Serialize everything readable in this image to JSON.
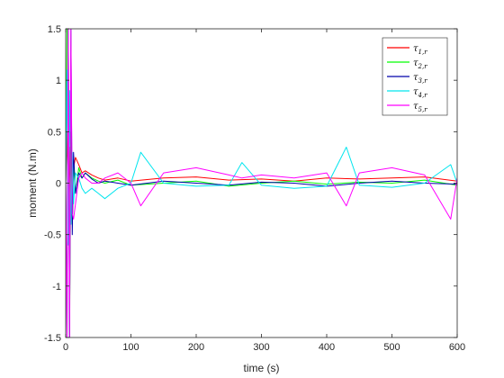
{
  "chart_data": {
    "type": "line",
    "xlabel": "time (s)",
    "ylabel": "moment (N.m)",
    "xlim": [
      0,
      600
    ],
    "ylim": [
      -1.5,
      1.5
    ],
    "x_ticks": [
      "0",
      "100",
      "200",
      "300",
      "400",
      "500",
      "600"
    ],
    "y_ticks": [
      "-1.5",
      "-1",
      "-0.5",
      "0",
      "0.5",
      "1",
      "1.5"
    ],
    "grid": false,
    "legend_position": "top-right",
    "series": [
      {
        "name": "τ1,r",
        "symbol": "τ",
        "subscript": "1,r",
        "color": "#ff0000",
        "x": [
          0,
          2,
          4,
          6,
          8,
          10,
          12,
          15,
          20,
          25,
          30,
          40,
          50,
          60,
          80,
          100,
          150,
          200,
          250,
          300,
          350,
          400,
          450,
          500,
          550,
          600
        ],
        "y": [
          0,
          0.5,
          -0.6,
          0.35,
          -0.3,
          0.2,
          0.15,
          0.25,
          0.18,
          0.1,
          0.12,
          0.08,
          0.05,
          0.03,
          0.05,
          0.02,
          0.05,
          0.06,
          0.03,
          0.04,
          0.02,
          0.05,
          0.04,
          0.05,
          0.06,
          0.02
        ]
      },
      {
        "name": "τ2,r",
        "symbol": "τ",
        "subscript": "2,r",
        "color": "#00ff00",
        "x": [
          0,
          2,
          4,
          6,
          8,
          10,
          12,
          15,
          20,
          25,
          30,
          40,
          50,
          60,
          80,
          100,
          150,
          200,
          250,
          300,
          350,
          400,
          450,
          500,
          550,
          600
        ],
        "y": [
          0,
          1.5,
          1.5,
          -1.5,
          0.5,
          -0.4,
          0.2,
          -0.1,
          0.15,
          0.05,
          0.1,
          0.05,
          0.02,
          0.0,
          0.03,
          -0.02,
          0.0,
          0.02,
          -0.03,
          0.0,
          0.02,
          -0.01,
          0.01,
          0.0,
          0.03,
          -0.02
        ]
      },
      {
        "name": "τ3,r",
        "symbol": "τ",
        "subscript": "3,r",
        "color": "#0000aa",
        "x": [
          0,
          2,
          4,
          6,
          8,
          10,
          12,
          15,
          20,
          25,
          30,
          40,
          50,
          60,
          80,
          100,
          150,
          200,
          250,
          300,
          350,
          400,
          450,
          500,
          550,
          600
        ],
        "y": [
          0,
          -1.5,
          1.5,
          -1.5,
          1.5,
          -0.5,
          0.3,
          -0.1,
          0.1,
          0.05,
          0.1,
          0.04,
          0.0,
          0.02,
          0.0,
          -0.02,
          0.02,
          0.0,
          -0.02,
          0.01,
          0.0,
          -0.03,
          0.0,
          0.02,
          0.0,
          -0.01
        ]
      },
      {
        "name": "τ4,r",
        "symbol": "τ",
        "subscript": "4,r",
        "color": "#00e5ee",
        "x": [
          0,
          2,
          4,
          6,
          8,
          10,
          12,
          15,
          20,
          25,
          30,
          40,
          50,
          60,
          80,
          100,
          115,
          150,
          200,
          250,
          270,
          300,
          350,
          400,
          430,
          450,
          500,
          550,
          590,
          600
        ],
        "y": [
          0,
          1.1,
          -0.6,
          0.9,
          -0.4,
          0.3,
          -0.2,
          0.1,
          0.05,
          -0.05,
          -0.1,
          -0.05,
          -0.1,
          -0.15,
          -0.05,
          0.0,
          0.3,
          0.0,
          -0.03,
          -0.02,
          0.2,
          -0.02,
          -0.05,
          -0.03,
          0.35,
          -0.02,
          -0.04,
          0.0,
          0.18,
          0.0
        ]
      },
      {
        "name": "τ5,r",
        "symbol": "τ",
        "subscript": "5,r",
        "color": "#ff00ff",
        "x": [
          0,
          2,
          4,
          6,
          8,
          10,
          12,
          15,
          20,
          25,
          30,
          40,
          50,
          60,
          80,
          100,
          115,
          150,
          200,
          250,
          270,
          300,
          350,
          400,
          430,
          450,
          500,
          550,
          590,
          600
        ],
        "y": [
          0,
          -1.5,
          1.5,
          -1.5,
          1.5,
          -0.3,
          -0.35,
          -0.2,
          0.05,
          0.1,
          0.05,
          0.0,
          0.0,
          0.05,
          0.1,
          0.0,
          -0.22,
          0.1,
          0.15,
          0.08,
          0.05,
          0.08,
          0.05,
          0.1,
          -0.22,
          0.1,
          0.15,
          0.08,
          -0.35,
          0.05
        ]
      }
    ]
  }
}
